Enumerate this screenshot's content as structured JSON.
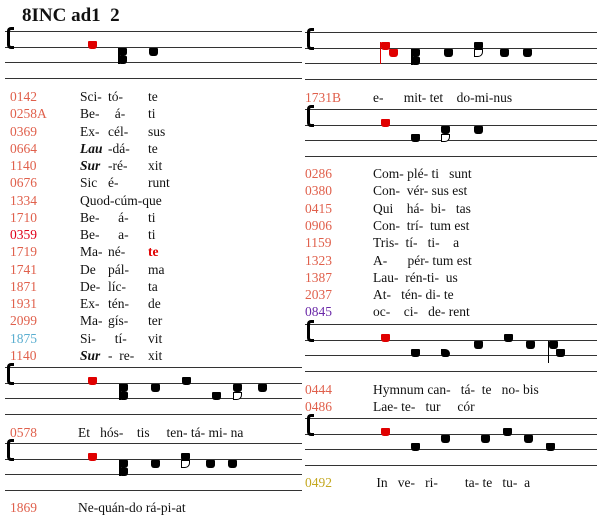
{
  "title": "8INC ad1  2",
  "colors": {
    "number": "#e0604c",
    "highlight": "#e0001a",
    "blue": "#5aaed0",
    "purple": "#6a28a8",
    "gold": "#c4a820",
    "red_note": "#e00000"
  },
  "staves": [
    {
      "id": "L1",
      "neumes": [
        {
          "p": [
            4
          ],
          "red": true
        },
        {
          "p": [
            2,
            3
          ],
          "kind": "pes"
        },
        {
          "p": [
            3
          ]
        }
      ]
    },
    {
      "id": "L2",
      "neumes": [
        {
          "p": [
            4
          ],
          "red": true
        },
        {
          "p": [
            2,
            3
          ],
          "kind": "pes"
        },
        {
          "p": [
            3
          ]
        },
        {
          "p": [
            4
          ]
        },
        {
          "p": [
            2
          ]
        },
        {
          "p": [
            2,
            3
          ],
          "kind": "pes-open"
        },
        {
          "p": [
            3
          ]
        }
      ]
    },
    {
      "id": "L3",
      "neumes": [
        {
          "p": [
            4
          ],
          "red": true
        },
        {
          "p": [
            2,
            3
          ],
          "kind": "pes"
        },
        {
          "p": [
            3
          ]
        },
        {
          "p": [
            3,
            4
          ],
          "kind": "pes-open"
        },
        {
          "p": [
            3
          ]
        },
        {
          "p": [
            3
          ]
        }
      ]
    },
    {
      "id": "R1",
      "neumes": [
        {
          "p": [
            4
          ],
          "red": true,
          "kind": "virga"
        },
        {
          "p": [
            3
          ],
          "red": true
        },
        {
          "p": [
            2,
            3
          ],
          "kind": "pes"
        },
        {
          "p": [
            3
          ]
        },
        {
          "p": [
            3,
            4
          ],
          "kind": "pes-open"
        },
        {
          "p": [
            3
          ]
        },
        {
          "p": [
            3
          ]
        }
      ]
    },
    {
      "id": "R2",
      "neumes": [
        {
          "p": [
            4
          ],
          "red": true
        },
        {
          "p": [
            2
          ]
        },
        {
          "p": [
            2,
            3
          ],
          "kind": "pes-open"
        },
        {
          "p": [
            3
          ]
        }
      ]
    },
    {
      "id": "R3",
      "neumes": [
        {
          "p": [
            4
          ],
          "red": true
        },
        {
          "p": [
            2
          ]
        },
        {
          "p": [
            2
          ],
          "kind": "quilisma"
        },
        {
          "p": [
            3
          ]
        },
        {
          "p": [
            4
          ]
        },
        {
          "p": [
            3
          ]
        },
        {
          "p": [
            3
          ],
          "kind": "virga"
        },
        {
          "p": [
            2
          ]
        }
      ]
    },
    {
      "id": "R4",
      "neumes": [
        {
          "p": [
            4
          ],
          "red": true
        },
        {
          "p": [
            2
          ]
        },
        {
          "p": [
            3
          ]
        },
        {
          "p": [
            3
          ]
        },
        {
          "p": [
            4
          ]
        },
        {
          "p": [
            3
          ]
        },
        {
          "p": [
            2
          ]
        }
      ]
    }
  ],
  "left_rows": [
    {
      "num": "0142",
      "c": [
        "Sci-",
        "tó-",
        "te"
      ]
    },
    {
      "num": "0258A",
      "c": [
        "Be-",
        "  á-",
        "ti"
      ]
    },
    {
      "num": "0369",
      "c": [
        "Ex-",
        "cél-",
        "sus"
      ]
    },
    {
      "num": "0664",
      "c": [
        "Lau",
        "-dá-",
        "te"
      ],
      "bi": [
        0
      ]
    },
    {
      "num": "1140",
      "c": [
        "Sur",
        "-ré-",
        "xit"
      ],
      "bi": [
        0
      ]
    },
    {
      "num": "0676",
      "c": [
        "Sic",
        "é-",
        "runt"
      ]
    },
    {
      "num": "1334",
      "c": [
        "Quod-cúm-que",
        "",
        ""
      ]
    },
    {
      "num": "1710",
      "c": [
        "Be-",
        "   á-",
        "ti"
      ]
    },
    {
      "num": "0359",
      "c": [
        "Be-",
        "   a-",
        "ti"
      ],
      "color": "highlight"
    },
    {
      "num": "1719",
      "c": [
        "Ma-",
        "né-",
        "te"
      ],
      "rb": [
        2
      ]
    },
    {
      "num": "1741",
      "c": [
        "De",
        "pál-",
        "ma"
      ]
    },
    {
      "num": "1871",
      "c": [
        "De-",
        "líc-",
        "ta"
      ]
    },
    {
      "num": "1931",
      "c": [
        "Ex-",
        "tén-",
        "de"
      ]
    },
    {
      "num": "2099",
      "c": [
        "Ma-",
        "gís-",
        "ter"
      ]
    },
    {
      "num": "1875",
      "c": [
        "Si-",
        "  tí-",
        "vit"
      ],
      "color": "blue"
    },
    {
      "num": "1140",
      "c": [
        "Sur",
        "-  re-",
        "xit"
      ],
      "bi": [
        0
      ]
    }
  ],
  "left_after": [
    {
      "num": "0578",
      "text": "Et   hós-    tis     ten- tá- mi- na"
    },
    {
      "num": "1869",
      "text": "Ne-quán-do rá-pi-at"
    }
  ],
  "right_first": {
    "num": "1731B",
    "text": "e-      mit- tet    do-mi-nus"
  },
  "right_rows": [
    {
      "num": "0286",
      "text": "Com- plé- ti   sunt"
    },
    {
      "num": "0380",
      "text": "Con-  vér- sus est"
    },
    {
      "num": "0415",
      "text": "Qui    há-  bi-   tas"
    },
    {
      "num": "0906",
      "text": "Con-  trí-  tum est"
    },
    {
      "num": "1159",
      "text": "Tris-  tí-   ti-    a"
    },
    {
      "num": "1323",
      "text": "A-      pér- tum est"
    },
    {
      "num": "1387",
      "text": "Lau-  rén-ti-  us"
    },
    {
      "num": "2037",
      "text": "At-   tén- di- te"
    },
    {
      "num": "0845",
      "text": "oc-    ci-   de- rent",
      "color": "purple"
    }
  ],
  "right_after": [
    {
      "num": "0444",
      "text": "Hymnum can-   tá-  te   no- bis"
    },
    {
      "num": "0486",
      "text": "Lae- te-   tur     cór"
    }
  ],
  "right_last": {
    "num": "0492",
    "text": " In   ve-   ri-        ta- te   tu-  a",
    "color": "gold"
  }
}
